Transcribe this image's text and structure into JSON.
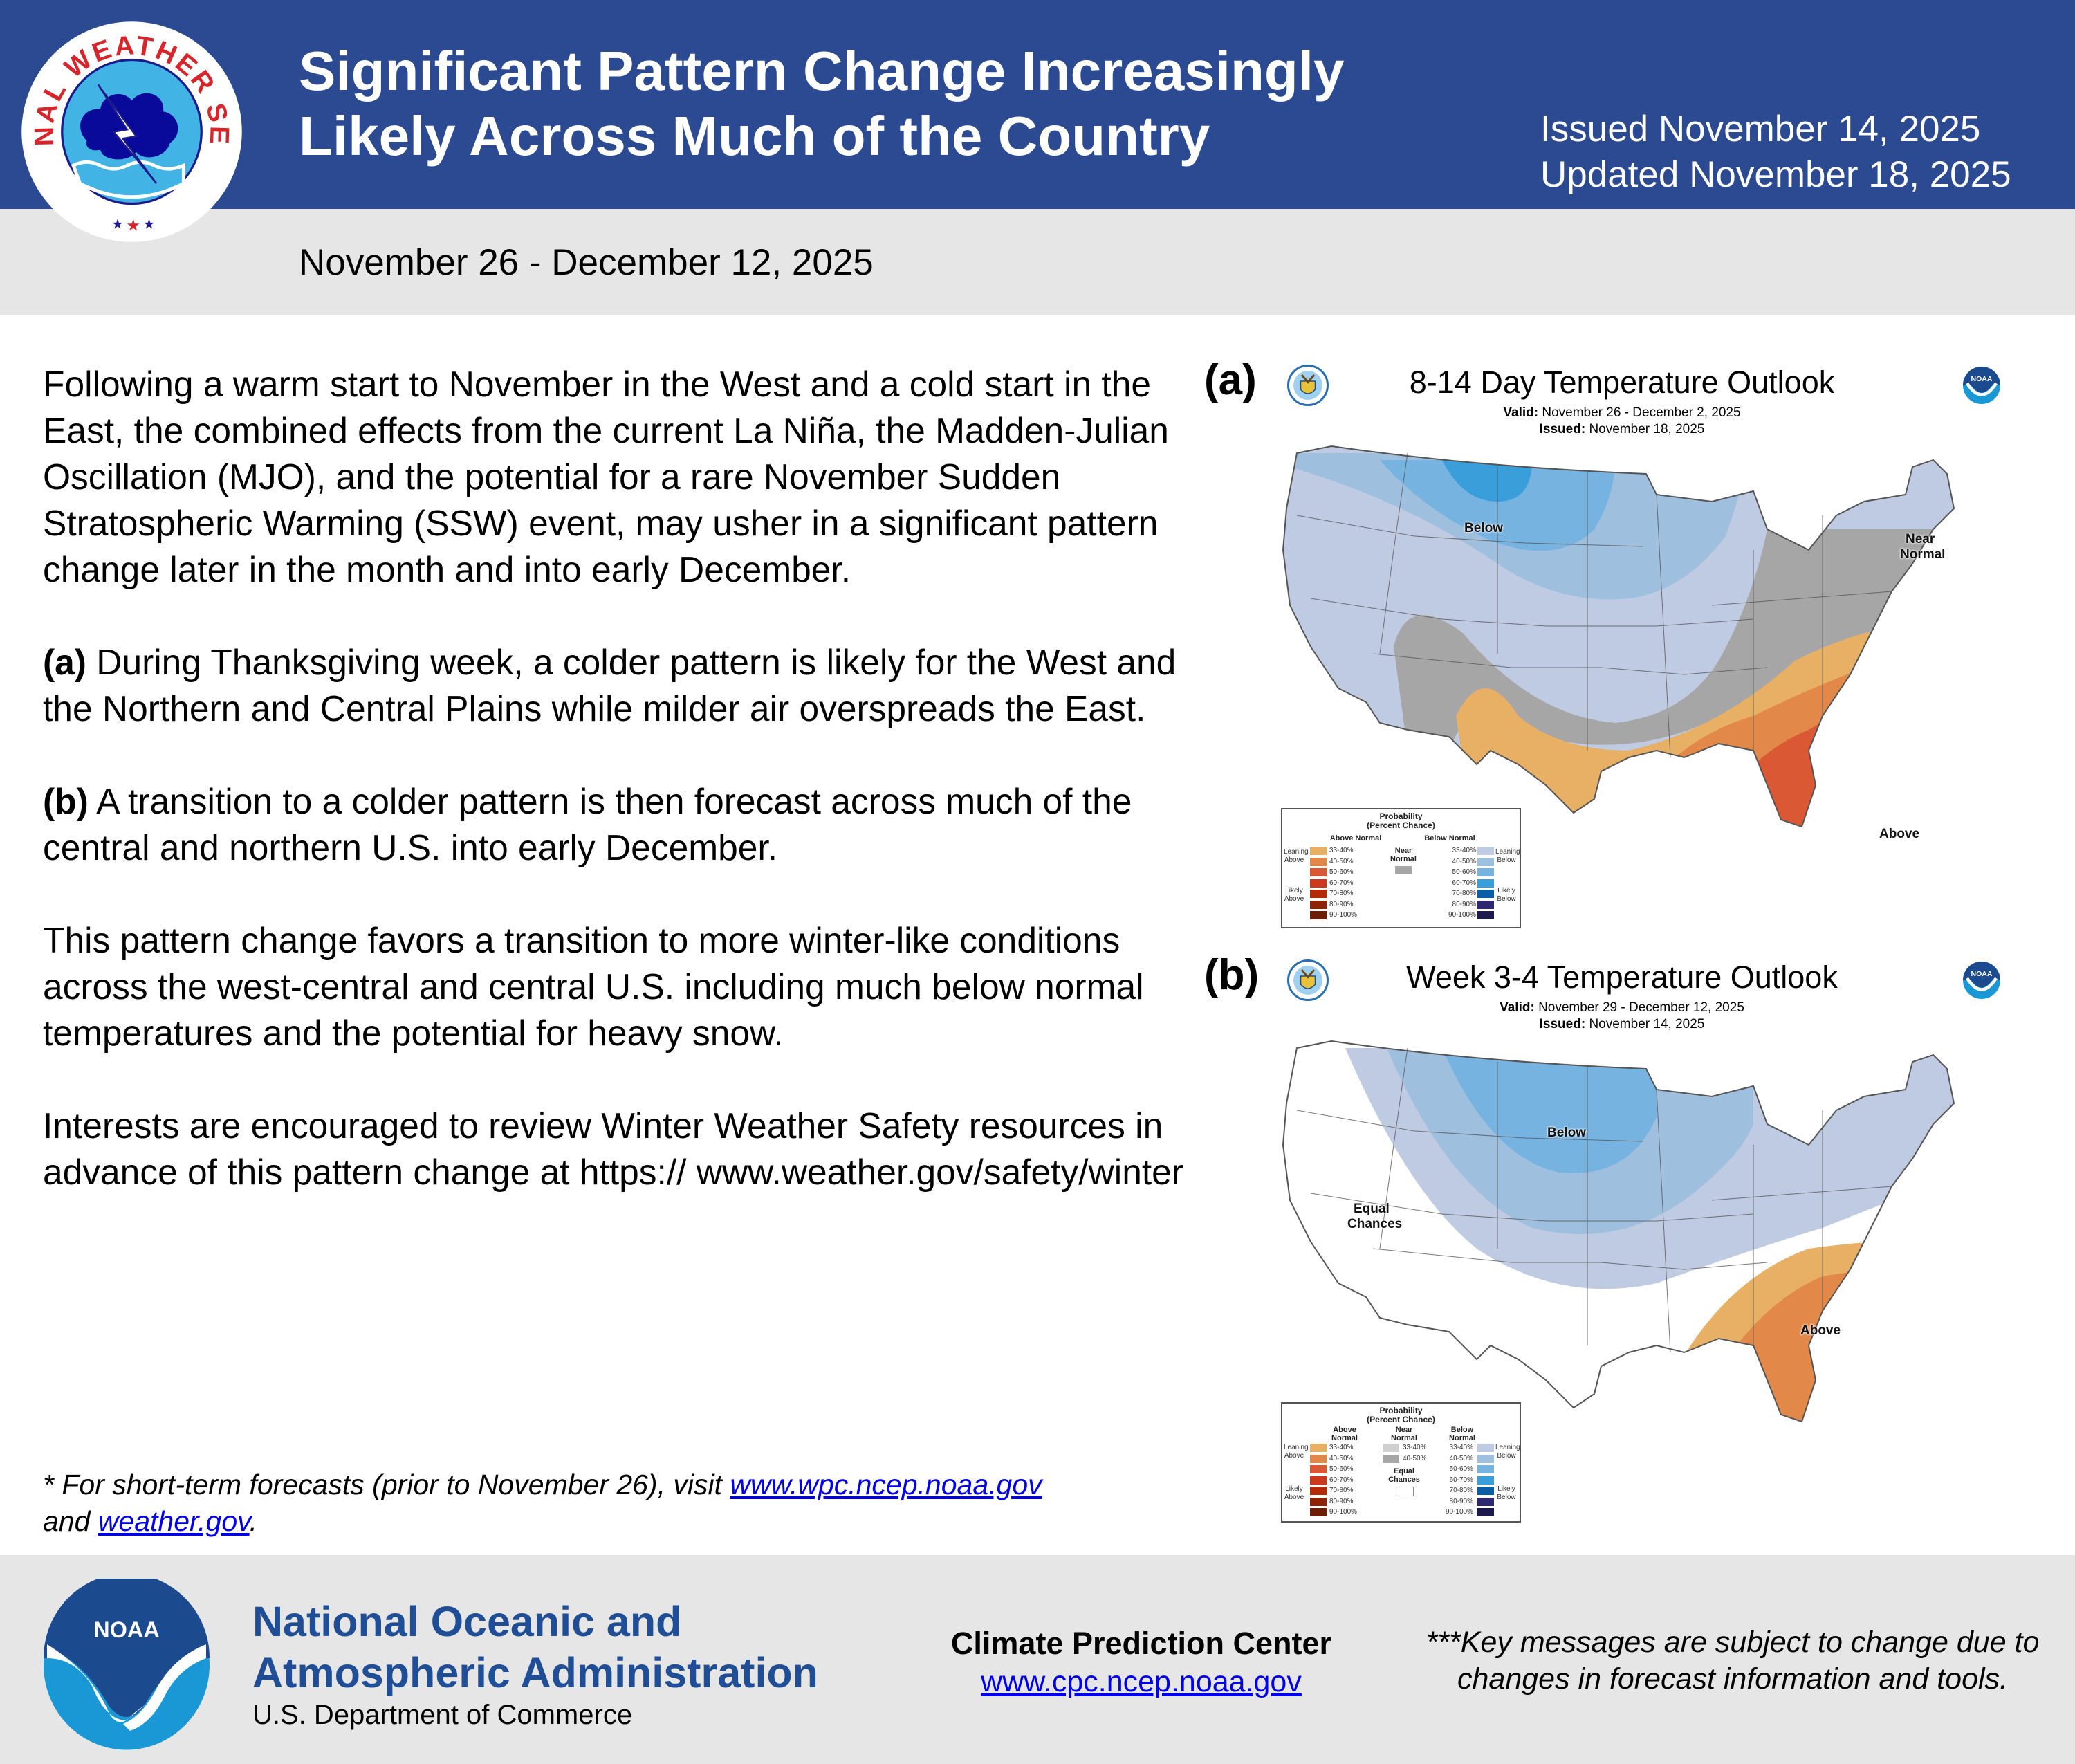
{
  "header": {
    "logo_text": "NATIONAL WEATHER SERVICE",
    "title_lines": [
      "Significant Pattern Change Increasingly",
      "Likely Across Much of the Country"
    ],
    "issued": "Issued November 14, 2025",
    "updated": "Updated November 18, 2025",
    "date_range": "November 26 - December 12, 2025",
    "brand_color": "#2b4a91"
  },
  "body": {
    "paragraph1": "Following a warm start to November in the West and a cold start in the East, the combined effects from the current La Niña, the Madden-Julian Oscillation (MJO), and the potential for a rare November Sudden Stratospheric Warming (SSW) event, may usher in a significant pattern change later in the month and into early December.",
    "paragraph2_label": "(a)",
    "paragraph2": " During Thanksgiving week, a colder pattern is likely for the West and the Northern and Central Plains while milder air overspreads the East.",
    "paragraph3_label": "(b)",
    "paragraph3": " A transition to a colder pattern is then forecast across much of the central and northern U.S. into early December.",
    "paragraph4": "This pattern change favors a transition to more winter-like conditions across the west-central and central U.S. including much below normal temperatures and the potential for heavy snow.",
    "paragraph5": "Interests are encouraged to review Winter Weather Safety resources in advance of this pattern change at https:// www.weather.gov/safety/winter"
  },
  "footnote": {
    "prefix": "* For short-term forecasts (prior to November 26), visit ",
    "link1": "www.wpc.ncep.noaa.gov",
    "middle": "and ",
    "link2": "weather.gov",
    "suffix": "."
  },
  "maps": {
    "a": {
      "letter": "(a)",
      "title": "8-14 Day Temperature Outlook",
      "valid_label": "Valid:",
      "valid": "November 26 - December 2, 2025",
      "issued_label": "Issued:",
      "issued": "November 18, 2025",
      "labels": {
        "below": "Below",
        "near": "Near",
        "normal": "Normal",
        "above": "Above"
      }
    },
    "b": {
      "letter": "(b)",
      "title": "Week 3-4 Temperature Outlook",
      "valid_label": "Valid:",
      "valid": "November 29 - December 12, 2025",
      "issued_label": "Issued:",
      "issued": "November 14, 2025",
      "labels": {
        "below": "Below",
        "equal": "Equal",
        "chances": "Chances",
        "above": "Above"
      }
    }
  },
  "legend": {
    "title1": "Probability",
    "title2": "(Percent Chance)",
    "above_normal": "Above Normal",
    "above_normal_l1": "Above",
    "above_normal_l2": "Normal",
    "below_normal": "Below Normal",
    "below_normal_l1": "Below",
    "below_normal_l2": "Normal",
    "near_l1": "Near",
    "near_l2": "Normal",
    "equal_l1": "Equal",
    "equal_l2": "Chances",
    "leaning_l1": "Leaning",
    "above_word": "Above",
    "below_word": "Below",
    "likely_l1": "Likely",
    "ranges": [
      "33-40%",
      "40-50%",
      "50-60%",
      "60-70%",
      "70-80%",
      "80-90%",
      "90-100%"
    ],
    "near_ranges": [
      "33-40%",
      "40-50%"
    ],
    "above_colors": [
      "#e8b065",
      "#e2894a",
      "#da5834",
      "#cb3a1d",
      "#b22a06",
      "#8e2207",
      "#6b1d06"
    ],
    "below_colors": [
      "#bfcae3",
      "#9fbfde",
      "#76b3e1",
      "#3a9edb",
      "#0b5ea5",
      "#2e2873",
      "#1c1a4c"
    ],
    "near_color": "#a6a6a6",
    "near_light_color": "#cfcfcf"
  },
  "footer": {
    "org_line1": "National Oceanic and",
    "org_line2": "Atmospheric Administration",
    "department": "U.S. Department of Commerce",
    "noaa_logo_text": "NOAA",
    "cpc_title": "Climate Prediction Center",
    "cpc_url": "www.cpc.ncep.noaa.gov",
    "disclaimer": "***Key messages are subject to change due to changes in forecast information and tools."
  }
}
